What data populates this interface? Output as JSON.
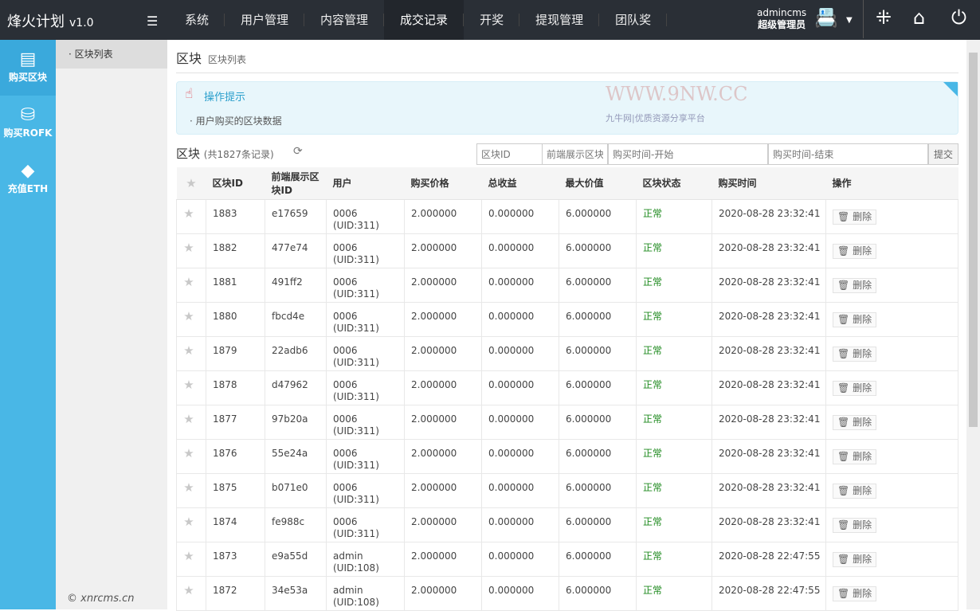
{
  "app": {
    "title": "烽火计划",
    "version": "v1.0"
  },
  "nav": [
    "系统",
    "用户管理",
    "内容管理",
    "成交记录",
    "开奖",
    "提现管理",
    "团队奖"
  ],
  "user": {
    "name": "admincms",
    "role": "超级管理员"
  },
  "leftbar": [
    "购买区块",
    "购买ROFK",
    "充值ETH"
  ],
  "copyright": "© xnrcms.cn",
  "submenu": [
    "区块列表"
  ],
  "breadcrumb": {
    "main": "区块",
    "sub": "区块列表"
  },
  "tip": {
    "title": "操作提示",
    "desc": "用户购买的区块数据"
  },
  "list": {
    "title": "区块",
    "count": "(共1827条记录)"
  },
  "search": {
    "id_placeholder": "区块ID",
    "front_placeholder": "前端展示区块",
    "start_placeholder": "购买时间-开始",
    "end_placeholder": "购买时间-结束",
    "submit": "提交"
  },
  "columns": [
    "区块ID",
    "前端展示区块ID",
    "用户",
    "购买价格",
    "总收益",
    "最大价值",
    "区块状态",
    "购买时间",
    "操作"
  ],
  "delete_label": "删除",
  "rows": [
    [
      "1883",
      "e17659",
      "0006",
      "(UID:311)",
      "2.000000",
      "0.000000",
      "6.000000",
      "正常",
      "2020-08-28 23:32:41"
    ],
    [
      "1882",
      "477e74",
      "0006",
      "(UID:311)",
      "2.000000",
      "0.000000",
      "6.000000",
      "正常",
      "2020-08-28 23:32:41"
    ],
    [
      "1881",
      "491ff2",
      "0006",
      "(UID:311)",
      "2.000000",
      "0.000000",
      "6.000000",
      "正常",
      "2020-08-28 23:32:41"
    ],
    [
      "1880",
      "fbcd4e",
      "0006",
      "(UID:311)",
      "2.000000",
      "0.000000",
      "6.000000",
      "正常",
      "2020-08-28 23:32:41"
    ],
    [
      "1879",
      "22adb6",
      "0006",
      "(UID:311)",
      "2.000000",
      "0.000000",
      "6.000000",
      "正常",
      "2020-08-28 23:32:41"
    ],
    [
      "1878",
      "d47962",
      "0006",
      "(UID:311)",
      "2.000000",
      "0.000000",
      "6.000000",
      "正常",
      "2020-08-28 23:32:41"
    ],
    [
      "1877",
      "97b20a",
      "0006",
      "(UID:311)",
      "2.000000",
      "0.000000",
      "6.000000",
      "正常",
      "2020-08-28 23:32:41"
    ],
    [
      "1876",
      "55e24a",
      "0006",
      "(UID:311)",
      "2.000000",
      "0.000000",
      "6.000000",
      "正常",
      "2020-08-28 23:32:41"
    ],
    [
      "1875",
      "b071e0",
      "0006",
      "(UID:311)",
      "2.000000",
      "0.000000",
      "6.000000",
      "正常",
      "2020-08-28 23:32:41"
    ],
    [
      "1874",
      "fe988c",
      "0006",
      "(UID:311)",
      "2.000000",
      "0.000000",
      "6.000000",
      "正常",
      "2020-08-28 23:32:41"
    ],
    [
      "1873",
      "e9a55d",
      "admin",
      "(UID:108)",
      "2.000000",
      "0.000000",
      "6.000000",
      "正常",
      "2020-08-28 22:47:55"
    ],
    [
      "1872",
      "34e53a",
      "admin",
      "(UID:108)",
      "2.000000",
      "0.000000",
      "6.000000",
      "正常",
      "2020-08-28 22:47:55"
    ]
  ],
  "watermark": {
    "url": "WWW.9NW.CC",
    "text": "九牛网|优质资源分享平台"
  }
}
